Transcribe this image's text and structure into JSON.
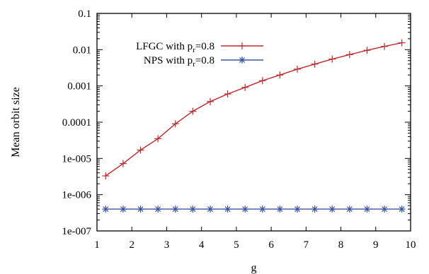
{
  "chart_data": {
    "type": "line",
    "xlabel": "g",
    "ylabel": "Mean orbit size",
    "xlim": [
      1,
      10
    ],
    "ylim": [
      1e-07,
      0.1
    ],
    "yscale": "log",
    "grid": false,
    "legend_position": "top-left",
    "x_ticks": [
      "1",
      "2",
      "3",
      "4",
      "5",
      "6",
      "7",
      "8",
      "9",
      "10"
    ],
    "y_ticks": [
      {
        "value": 0.1,
        "label": "0.1"
      },
      {
        "value": 0.01,
        "label": "0.01"
      },
      {
        "value": 0.001,
        "label": "0.001"
      },
      {
        "value": 0.0001,
        "label": "0.0001"
      },
      {
        "value": 1e-05,
        "label": "1e-005"
      },
      {
        "value": 1e-06,
        "label": "1e-006"
      },
      {
        "value": 1e-07,
        "label": "1e-007"
      }
    ],
    "series": [
      {
        "name": "LFGC with p",
        "name_subscript": "r",
        "name_suffix": "=0.8",
        "color": "#c0282d",
        "marker": "plus",
        "x": [
          1.25,
          1.75,
          2.25,
          2.75,
          3.25,
          3.75,
          4.25,
          4.75,
          5.25,
          5.75,
          6.25,
          6.75,
          7.25,
          7.75,
          8.25,
          8.75,
          9.25,
          9.75
        ],
        "y": [
          3.3e-06,
          7.2e-06,
          1.7e-05,
          3.5e-05,
          9e-05,
          0.0002,
          0.00037,
          0.0006,
          0.00091,
          0.0014,
          0.002,
          0.0029,
          0.004,
          0.0055,
          0.0073,
          0.0096,
          0.0123,
          0.0155
        ]
      },
      {
        "name": "NPS with p",
        "name_subscript": "r",
        "name_suffix": "=0.8",
        "color": "#3a54a4",
        "marker": "star",
        "x": [
          1.25,
          1.75,
          2.25,
          2.75,
          3.25,
          3.75,
          4.25,
          4.75,
          5.25,
          5.75,
          6.25,
          6.75,
          7.25,
          7.75,
          8.25,
          8.75,
          9.25,
          9.75
        ],
        "y": [
          4e-07,
          4e-07,
          4e-07,
          4e-07,
          4e-07,
          4e-07,
          4e-07,
          4e-07,
          4e-07,
          4e-07,
          4e-07,
          4e-07,
          4e-07,
          4e-07,
          4e-07,
          4e-07,
          4e-07,
          4e-07
        ]
      }
    ]
  }
}
